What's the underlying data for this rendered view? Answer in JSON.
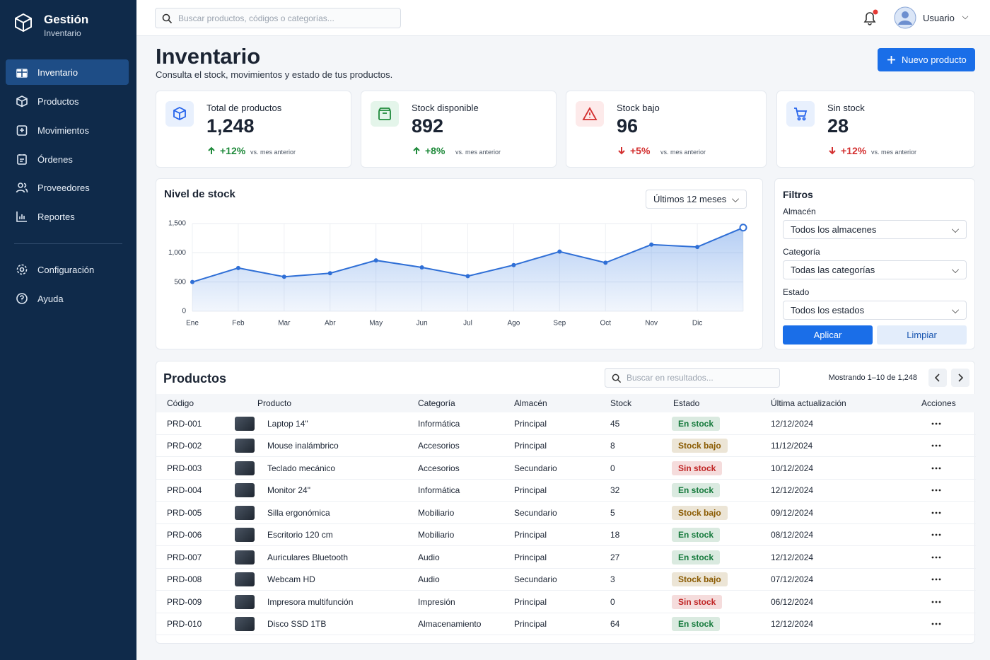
{
  "sidebar": {
    "brand": "Gestión",
    "subtitle": "Inventario",
    "nav": [
      "Inventario",
      "Productos",
      "Movimientos",
      "Órdenes",
      "Proveedores",
      "Reportes"
    ],
    "footer_nav": [
      "Configuración",
      "Ayuda"
    ]
  },
  "topbar": {
    "search_placeholder": "Buscar productos, códigos o categorías...",
    "user": "Usuario"
  },
  "header": {
    "title": "Inventario",
    "subtitle": "Consulta el stock, movimientos y estado de tus productos.",
    "button": "Nuevo producto"
  },
  "stats": [
    {
      "label": "Total de productos",
      "value": "1,248",
      "change": "+12%",
      "note": "vs. mes anterior",
      "change_color": "#1f8a3b"
    },
    {
      "label": "Stock disponible",
      "value": "892",
      "change": "+8%",
      "note": "vs. mes anterior",
      "change_color": "#1f8a3b"
    },
    {
      "label": "Stock bajo",
      "value": "96",
      "change": "+5%",
      "note": "vs. mes anterior",
      "change_color": "#d32f2f"
    },
    {
      "label": "Sin stock",
      "value": "28",
      "change": "+12%",
      "note": "vs. mes anterior",
      "change_color": "#d32f2f"
    }
  ],
  "chart_panel": {
    "period": "Últimos 12 meses"
  },
  "chart_data": {
    "type": "line",
    "title": "Nivel de stock",
    "categories": [
      "Ene",
      "Feb",
      "Mar",
      "Abr",
      "May",
      "Jun",
      "Jul",
      "Ago",
      "Sep",
      "Oct",
      "Nov",
      "Dic",
      null
    ],
    "series": [
      {
        "name": "Stock",
        "color": "#2f6fd6",
        "values": [
          500,
          740,
          590,
          650,
          870,
          750,
          600,
          790,
          1020,
          830,
          1140,
          1100,
          1430
        ]
      }
    ],
    "ylim": [
      0,
      1500
    ],
    "yticks": [
      0,
      500,
      {
        "value": 1000,
        "label": "1,000"
      },
      {
        "value": 1500,
        "label": "1,500"
      }
    ],
    "grid": true
  },
  "filters": {
    "title": "Filtros",
    "fields": [
      {
        "label": "Almacén",
        "value": "Todos los almacenes"
      },
      {
        "label": "Categoría",
        "value": "Todas las categorías"
      },
      {
        "label": "Estado",
        "value": "Todos los estados"
      }
    ],
    "apply": "Aplicar",
    "clear": "Limpiar"
  },
  "products": {
    "title": "Productos",
    "search_placeholder": "Buscar en resultados...",
    "count": "Mostrando 1–10 de 1,248",
    "columns": [
      "Código",
      "Producto",
      "Categoría",
      "Almacén",
      "Stock",
      "Estado",
      "Última actualización",
      "Acciones"
    ],
    "rows": [
      {
        "code": "PRD-001",
        "name": "Laptop 14\"",
        "category": "Informática",
        "warehouse": "Principal",
        "stock": 45,
        "status": "En stock",
        "status_color": "#157a3c",
        "updated": "12/12/2024"
      },
      {
        "code": "PRD-002",
        "name": "Mouse inalámbrico",
        "category": "Accesorios",
        "warehouse": "Principal",
        "stock": 8,
        "status": "Stock bajo",
        "status_color": "#8a5a00",
        "updated": "11/12/2024"
      },
      {
        "code": "PRD-003",
        "name": "Teclado mecánico",
        "category": "Accesorios",
        "warehouse": "Secundario",
        "stock": 0,
        "status": "Sin stock",
        "status_color": "#c02525",
        "updated": "10/12/2024"
      },
      {
        "code": "PRD-004",
        "name": "Monitor 24\"",
        "category": "Informática",
        "warehouse": "Principal",
        "stock": 32,
        "status": "En stock",
        "status_color": "#157a3c",
        "updated": "12/12/2024"
      },
      {
        "code": "PRD-005",
        "name": "Silla ergonómica",
        "category": "Mobiliario",
        "warehouse": "Secundario",
        "stock": 5,
        "status": "Stock bajo",
        "status_color": "#8a5a00",
        "updated": "09/12/2024"
      },
      {
        "code": "PRD-006",
        "name": "Escritorio 120 cm",
        "category": "Mobiliario",
        "warehouse": "Principal",
        "stock": 18,
        "status": "En stock",
        "status_color": "#157a3c",
        "updated": "08/12/2024"
      },
      {
        "code": "PRD-007",
        "name": "Auriculares Bluetooth",
        "category": "Audio",
        "warehouse": "Principal",
        "stock": 27,
        "status": "En stock",
        "status_color": "#157a3c",
        "updated": "12/12/2024"
      },
      {
        "code": "PRD-008",
        "name": "Webcam HD",
        "category": "Audio",
        "warehouse": "Secundario",
        "stock": 3,
        "status": "Stock bajo",
        "status_color": "#8a5a00",
        "updated": "07/12/2024"
      },
      {
        "code": "PRD-009",
        "name": "Impresora multifunción",
        "category": "Impresión",
        "warehouse": "Principal",
        "stock": 0,
        "status": "Sin stock",
        "status_color": "#c02525",
        "updated": "06/12/2024"
      },
      {
        "code": "PRD-010",
        "name": "Disco SSD 1TB",
        "category": "Almacenamiento",
        "warehouse": "Principal",
        "stock": 64,
        "status": "En stock",
        "status_color": "#157a3c",
        "updated": "12/12/2024"
      }
    ]
  }
}
